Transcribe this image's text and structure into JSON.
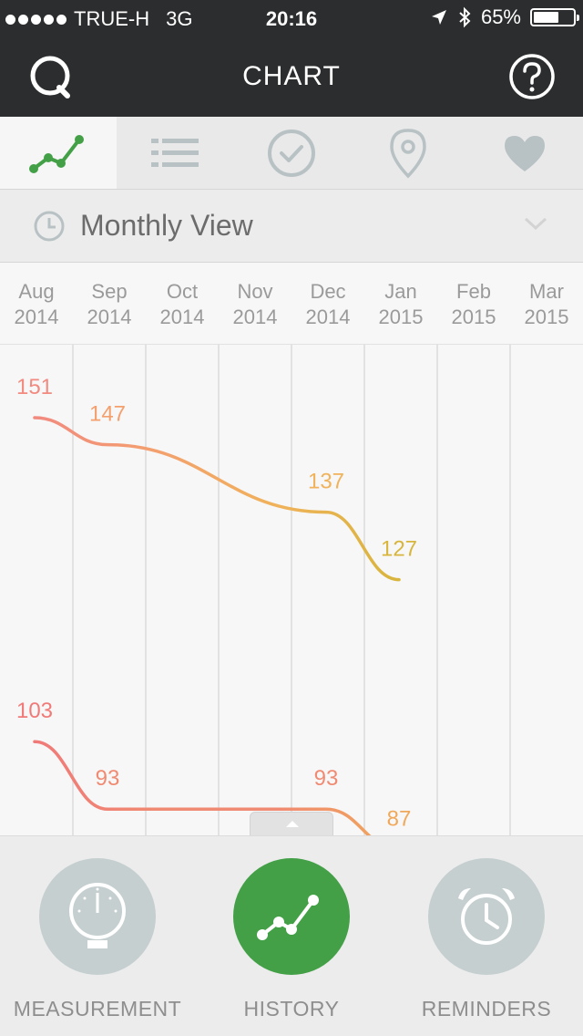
{
  "status_bar": {
    "carrier": "TRUE-H",
    "network": "3G",
    "time": "20:16",
    "battery": "65%",
    "battery_level": 0.65
  },
  "header": {
    "title": "CHART"
  },
  "view_selector": {
    "label": "Monthly View"
  },
  "months": [
    {
      "month": "Aug",
      "year": "2014"
    },
    {
      "month": "Sep",
      "year": "2014"
    },
    {
      "month": "Oct",
      "year": "2014"
    },
    {
      "month": "Nov",
      "year": "2014"
    },
    {
      "month": "Dec",
      "year": "2014"
    },
    {
      "month": "Jan",
      "year": "2015"
    },
    {
      "month": "Feb",
      "year": "2015"
    },
    {
      "month": "Mar",
      "year": "2015"
    }
  ],
  "chart_data": {
    "type": "line",
    "categories": [
      "Aug 2014",
      "Sep 2014",
      "Oct 2014",
      "Nov 2014",
      "Dec 2014",
      "Jan 2015",
      "Feb 2015",
      "Mar 2015"
    ],
    "series": [
      {
        "values": [
          151,
          147,
          null,
          null,
          137,
          127,
          null,
          null
        ],
        "colors": [
          "#f28a80",
          "#f3a06e",
          null,
          null,
          "#f0b25a",
          "#d8b53c"
        ]
      },
      {
        "values": [
          103,
          93,
          null,
          null,
          93,
          87,
          null,
          null
        ],
        "colors": [
          "#f07a78",
          "#f08a72",
          null,
          null,
          "#f08a72",
          "#f0a85a"
        ]
      }
    ]
  },
  "bottom_nav": {
    "items": [
      {
        "label": "MEASUREMENT"
      },
      {
        "label": "HISTORY"
      },
      {
        "label": "REMINDERS"
      }
    ]
  }
}
